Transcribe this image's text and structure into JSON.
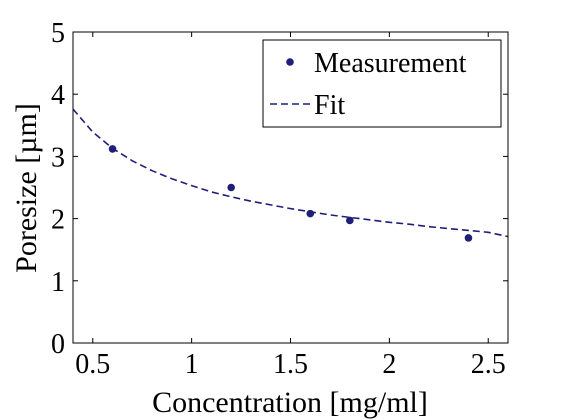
{
  "chart_data": {
    "type": "scatter",
    "title": "",
    "xlabel": "Concentration [mg/ml]",
    "ylabel": "Poresize [µm]",
    "xlim": [
      0.4,
      2.6
    ],
    "ylim": [
      0,
      5
    ],
    "xticks": [
      "0.5",
      "1",
      "1.5",
      "2",
      "2.5"
    ],
    "xtick_values": [
      0.5,
      1,
      1.5,
      2,
      2.5
    ],
    "yticks": [
      "0",
      "1",
      "2",
      "3",
      "4",
      "5"
    ],
    "ytick_values": [
      0,
      1,
      2,
      3,
      4,
      5
    ],
    "grid": false,
    "legend_position": "top-right",
    "color": "#1f1f7a",
    "series": [
      {
        "name": "Measurement",
        "style": "markers",
        "x": [
          0.6,
          1.2,
          1.6,
          1.8,
          2.4
        ],
        "y": [
          3.12,
          2.5,
          2.08,
          1.97,
          1.69
        ]
      },
      {
        "name": "Fit",
        "style": "dashed-line",
        "x": [
          0.4,
          0.5,
          0.6,
          0.7,
          0.8,
          0.9,
          1.0,
          1.1,
          1.2,
          1.3,
          1.4,
          1.5,
          1.6,
          1.7,
          1.8,
          1.9,
          2.0,
          2.1,
          2.2,
          2.3,
          2.4,
          2.5,
          2.6
        ],
        "y": [
          3.76,
          3.39,
          3.13,
          2.93,
          2.77,
          2.64,
          2.53,
          2.43,
          2.35,
          2.28,
          2.22,
          2.16,
          2.11,
          2.06,
          2.02,
          1.98,
          1.94,
          1.91,
          1.87,
          1.84,
          1.81,
          1.78,
          1.71
        ]
      }
    ]
  }
}
